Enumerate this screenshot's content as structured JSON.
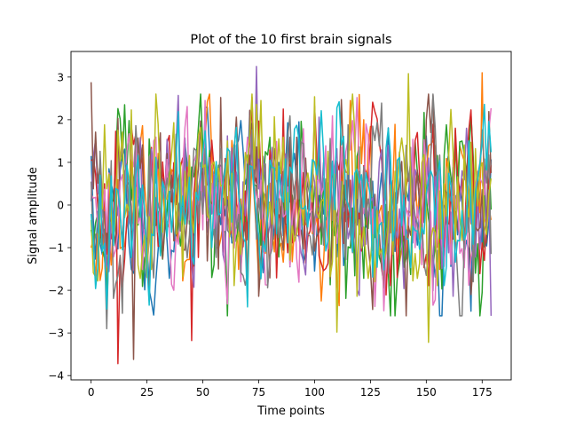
{
  "chart_data": {
    "type": "line",
    "title": "Plot of the 10 first brain signals",
    "xlabel": "Time points",
    "ylabel": "Signal amplitude",
    "xlim": [
      -9,
      188
    ],
    "ylim": [
      -4.1,
      3.6
    ],
    "xticks": [
      0,
      25,
      50,
      75,
      100,
      125,
      150,
      175
    ],
    "yticks": [
      -4,
      -3,
      -2,
      -1,
      0,
      1,
      2,
      3
    ],
    "grid": false,
    "legend": "none",
    "n_points": 180,
    "series": [
      {
        "color": "#1f77b4",
        "values": []
      },
      {
        "color": "#ff7f0e",
        "values": []
      },
      {
        "color": "#2ca02c",
        "values": []
      },
      {
        "color": "#d62728",
        "values": []
      },
      {
        "color": "#9467bd",
        "values": []
      },
      {
        "color": "#8c564b",
        "values": []
      },
      {
        "color": "#e377c2",
        "values": []
      },
      {
        "color": "#7f7f7f",
        "values": []
      },
      {
        "color": "#bcbd22",
        "values": []
      },
      {
        "color": "#17becf",
        "values": []
      }
    ],
    "peaks": [
      {
        "series": 4,
        "x": 74,
        "y": 3.25
      },
      {
        "series": 3,
        "x": 12,
        "y": -3.72
      },
      {
        "series": 5,
        "x": 19,
        "y": -3.62
      },
      {
        "series": 8,
        "x": 110,
        "y": -2.98
      },
      {
        "series": 8,
        "x": 151,
        "y": -3.22
      },
      {
        "series": 1,
        "x": 175,
        "y": 3.1
      },
      {
        "series": 8,
        "x": 142,
        "y": 3.08
      },
      {
        "series": 5,
        "x": 0,
        "y": 2.88
      },
      {
        "series": 3,
        "x": 45,
        "y": -3.18
      },
      {
        "series": 7,
        "x": 7,
        "y": -2.9
      },
      {
        "series": 4,
        "x": 179,
        "y": -2.6
      },
      {
        "series": 6,
        "x": 51,
        "y": 2.45
      }
    ]
  }
}
